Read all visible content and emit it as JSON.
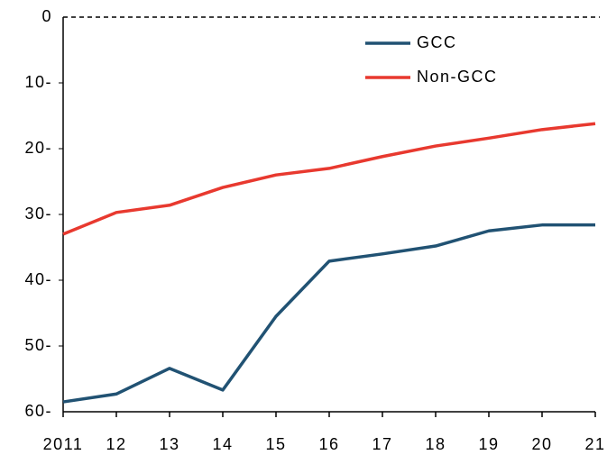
{
  "chart_data": {
    "type": "line",
    "categories": [
      "2011",
      "12",
      "13",
      "14",
      "15",
      "16",
      "17",
      "18",
      "19",
      "20",
      "21"
    ],
    "series": [
      {
        "name": "GCC",
        "color": "#215273",
        "values": [
          58.5,
          57.3,
          53.4,
          56.7,
          45.5,
          37.1,
          36.0,
          34.8,
          32.5,
          31.6,
          31.6
        ]
      },
      {
        "name": "Non-GCC",
        "color": "#e8392f",
        "values": [
          33.0,
          29.7,
          28.6,
          25.9,
          24.0,
          23.0,
          21.2,
          19.6,
          18.4,
          17.1,
          16.2
        ]
      }
    ],
    "ylim": [
      0,
      60
    ],
    "yticks": [
      0,
      {
        "value": 10,
        "label": "10-"
      },
      {
        "value": 20,
        "label": "20-"
      },
      {
        "value": 30,
        "label": "30-"
      },
      {
        "value": 40,
        "label": "40-"
      },
      {
        "value": 50,
        "label": "50-"
      },
      {
        "value": 60,
        "label": "60-"
      }
    ],
    "y_inverted": true,
    "legend": "upper right"
  }
}
